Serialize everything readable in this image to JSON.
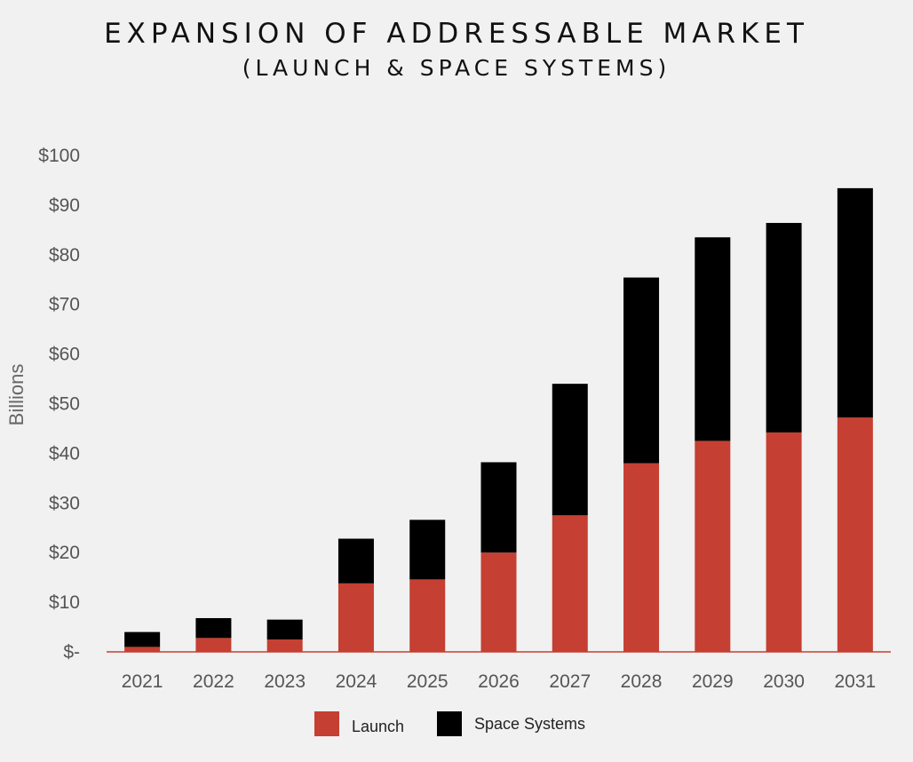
{
  "chart_data": {
    "type": "bar",
    "stacked": true,
    "title": "EXPANSION OF ADDRESSABLE MARKET",
    "subtitle": "(LAUNCH & SPACE SYSTEMS)",
    "xlabel": "",
    "ylabel": "Billions",
    "ylim": [
      0,
      100
    ],
    "y_ticks": [
      {
        "value": 0,
        "label": "$-"
      },
      {
        "value": 10,
        "label": "$10"
      },
      {
        "value": 20,
        "label": "$20"
      },
      {
        "value": 30,
        "label": "$30"
      },
      {
        "value": 40,
        "label": "$40"
      },
      {
        "value": 50,
        "label": "$50"
      },
      {
        "value": 60,
        "label": "$60"
      },
      {
        "value": 70,
        "label": "$70"
      },
      {
        "value": 80,
        "label": "$80"
      },
      {
        "value": 90,
        "label": "$90"
      },
      {
        "value": 100,
        "label": "$100"
      }
    ],
    "categories": [
      "2021",
      "2022",
      "2023",
      "2024",
      "2025",
      "2026",
      "2027",
      "2028",
      "2029",
      "2030",
      "2031"
    ],
    "series": [
      {
        "name": "Launch",
        "color": "#c53f32",
        "values": [
          1.0,
          2.8,
          2.5,
          13.8,
          14.6,
          20.0,
          27.5,
          38.0,
          42.5,
          44.2,
          47.2
        ]
      },
      {
        "name": "Space Systems",
        "color": "#000000",
        "values": [
          3.0,
          4.0,
          4.0,
          9.0,
          12.0,
          18.2,
          26.5,
          37.4,
          41.0,
          42.2,
          46.2
        ]
      }
    ],
    "grid": false,
    "legend": "bottom-center"
  }
}
